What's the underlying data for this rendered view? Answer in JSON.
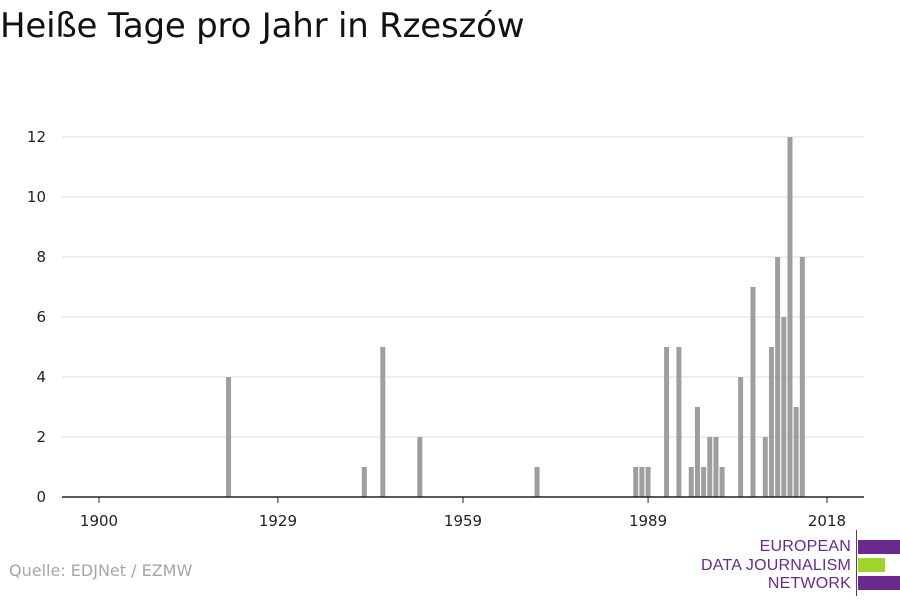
{
  "title": "Heiße Tage pro Jahr in Rzeszów",
  "source": "Quelle: EDJNet / EZMW",
  "logo": {
    "line1": "EUROPEAN",
    "line2": "DATA JOURNALISM",
    "line3": "NETWORK",
    "colors": {
      "purple": "#6a2a8c",
      "green": "#9fd42c"
    }
  },
  "colors": {
    "bar": "#9e9e9e",
    "grid": "#dddddd",
    "axis": "#222222"
  },
  "chart_data": {
    "type": "bar",
    "title": "Heiße Tage pro Jahr in Rzeszów",
    "xlabel": "",
    "ylabel": "",
    "xlim": [
      1894,
      2024
    ],
    "ylim": [
      0,
      12
    ],
    "x_ticks": [
      1900,
      1929,
      1959,
      1989,
      2018
    ],
    "y_ticks": [
      0,
      2,
      4,
      6,
      8,
      10,
      12
    ],
    "grid": true,
    "legend": "none",
    "x": [
      1921,
      1943,
      1946,
      1952,
      1971,
      1987,
      1988,
      1989,
      1992,
      1994,
      1996,
      1997,
      1998,
      1999,
      2000,
      2001,
      2004,
      2006,
      2008,
      2009,
      2010,
      2011,
      2012,
      2013,
      2014,
      2015
    ],
    "values": [
      4,
      1,
      5,
      2,
      1,
      1,
      1,
      1,
      5,
      5,
      1,
      3,
      1,
      2,
      2,
      1,
      4,
      7,
      2,
      5,
      8,
      6,
      12,
      3,
      8,
      0
    ]
  }
}
